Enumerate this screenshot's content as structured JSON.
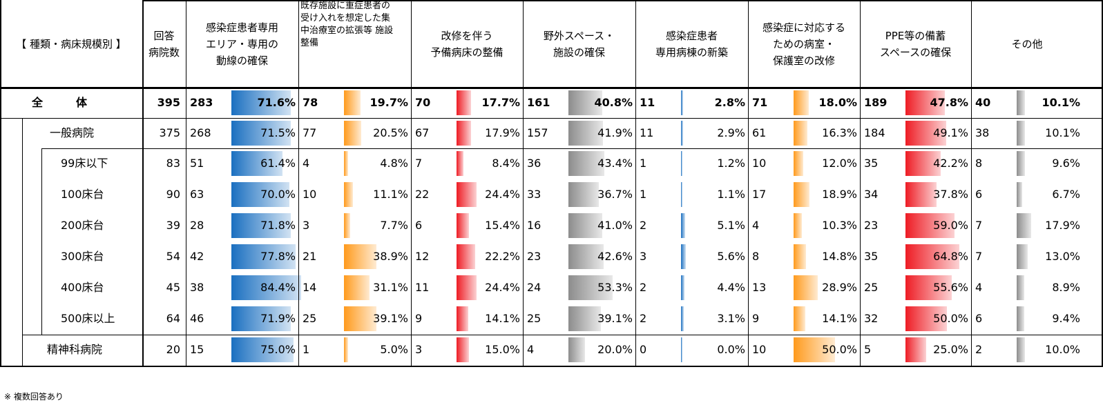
{
  "header": {
    "title": "【 種類・病床規模別 】",
    "count_label_lines": [
      "回答",
      "病院数"
    ],
    "columns": [
      {
        "lines": [
          "感染症患者専用",
          "エリア・専用の",
          "動線の確保"
        ],
        "color": "blue"
      },
      {
        "lines": [
          "既存施設に重症患者の",
          "受け入れを想定した集",
          "中治療室の拡張等 施設",
          "整備"
        ],
        "color": "orange",
        "small": true
      },
      {
        "lines": [
          "改修を伴う",
          "予備病床の整備"
        ],
        "color": "red"
      },
      {
        "lines": [
          "野外スペース・",
          "施設の確保"
        ],
        "color": "gray"
      },
      {
        "lines": [
          "感染症患者",
          "専用病棟の新築"
        ],
        "color": "blue"
      },
      {
        "lines": [
          "感染症に対応する",
          "ための病室・",
          "保護室の改修"
        ],
        "color": "orange"
      },
      {
        "lines": [
          "PPE等の備蓄",
          "スペースの確保"
        ],
        "color": "red"
      },
      {
        "lines": [
          "その他"
        ],
        "color": "gray"
      }
    ]
  },
  "colors": {
    "blue": "#1a6fc0",
    "orange": "#ff9a1c",
    "red": "#ee1c24",
    "gray": "#8c8c8c"
  },
  "rows": [
    {
      "label": "全　　　体",
      "count": "395",
      "bold": true,
      "cells": [
        [
          "283",
          "71.6%",
          0.716
        ],
        [
          "78",
          "19.7%",
          0.197
        ],
        [
          "70",
          "17.7%",
          0.177
        ],
        [
          "161",
          "40.8%",
          0.408
        ],
        [
          "11",
          "2.8%",
          0.028
        ],
        [
          "71",
          "18.0%",
          0.18
        ],
        [
          "189",
          "47.8%",
          0.478
        ],
        [
          "40",
          "10.1%",
          0.101
        ]
      ]
    },
    {
      "label": "一般病院",
      "count": "375",
      "cells": [
        [
          "268",
          "71.5%",
          0.715
        ],
        [
          "77",
          "20.5%",
          0.205
        ],
        [
          "67",
          "17.9%",
          0.179
        ],
        [
          "157",
          "41.9%",
          0.419
        ],
        [
          "11",
          "2.9%",
          0.029
        ],
        [
          "61",
          "16.3%",
          0.163
        ],
        [
          "184",
          "49.1%",
          0.491
        ],
        [
          "38",
          "10.1%",
          0.101
        ]
      ]
    },
    {
      "label": "99床以下",
      "count": "83",
      "cells": [
        [
          "51",
          "61.4%",
          0.614
        ],
        [
          "4",
          "4.8%",
          0.048
        ],
        [
          "7",
          "8.4%",
          0.084
        ],
        [
          "36",
          "43.4%",
          0.434
        ],
        [
          "1",
          "1.2%",
          0.012
        ],
        [
          "10",
          "12.0%",
          0.12
        ],
        [
          "35",
          "42.2%",
          0.422
        ],
        [
          "8",
          "9.6%",
          0.096
        ]
      ]
    },
    {
      "label": "100床台",
      "count": "90",
      "cells": [
        [
          "63",
          "70.0%",
          0.7
        ],
        [
          "10",
          "11.1%",
          0.111
        ],
        [
          "22",
          "24.4%",
          0.244
        ],
        [
          "33",
          "36.7%",
          0.367
        ],
        [
          "1",
          "1.1%",
          0.011
        ],
        [
          "17",
          "18.9%",
          0.189
        ],
        [
          "34",
          "37.8%",
          0.378
        ],
        [
          "6",
          "6.7%",
          0.067
        ]
      ]
    },
    {
      "label": "200床台",
      "count": "39",
      "cells": [
        [
          "28",
          "71.8%",
          0.718
        ],
        [
          "3",
          "7.7%",
          0.077
        ],
        [
          "6",
          "15.4%",
          0.154
        ],
        [
          "16",
          "41.0%",
          0.41
        ],
        [
          "2",
          "5.1%",
          0.051
        ],
        [
          "4",
          "10.3%",
          0.103
        ],
        [
          "23",
          "59.0%",
          0.59
        ],
        [
          "7",
          "17.9%",
          0.179
        ]
      ]
    },
    {
      "label": "300床台",
      "count": "54",
      "cells": [
        [
          "42",
          "77.8%",
          0.778
        ],
        [
          "21",
          "38.9%",
          0.389
        ],
        [
          "12",
          "22.2%",
          0.222
        ],
        [
          "23",
          "42.6%",
          0.426
        ],
        [
          "3",
          "5.6%",
          0.056
        ],
        [
          "8",
          "14.8%",
          0.148
        ],
        [
          "35",
          "64.8%",
          0.648
        ],
        [
          "7",
          "13.0%",
          0.13
        ]
      ]
    },
    {
      "label": "400床台",
      "count": "45",
      "cells": [
        [
          "38",
          "84.4%",
          0.844
        ],
        [
          "14",
          "31.1%",
          0.311
        ],
        [
          "11",
          "24.4%",
          0.244
        ],
        [
          "24",
          "53.3%",
          0.533
        ],
        [
          "2",
          "4.4%",
          0.044
        ],
        [
          "13",
          "28.9%",
          0.289
        ],
        [
          "25",
          "55.6%",
          0.556
        ],
        [
          "4",
          "8.9%",
          0.089
        ]
      ]
    },
    {
      "label": "500床以上",
      "count": "64",
      "cells": [
        [
          "46",
          "71.9%",
          0.719
        ],
        [
          "25",
          "39.1%",
          0.391
        ],
        [
          "9",
          "14.1%",
          0.141
        ],
        [
          "25",
          "39.1%",
          0.391
        ],
        [
          "2",
          "3.1%",
          0.031
        ],
        [
          "9",
          "14.1%",
          0.141
        ],
        [
          "32",
          "50.0%",
          0.5
        ],
        [
          "6",
          "9.4%",
          0.094
        ]
      ]
    },
    {
      "label": "精神科病院",
      "count": "20",
      "cells": [
        [
          "15",
          "75.0%",
          0.75
        ],
        [
          "1",
          "5.0%",
          0.05
        ],
        [
          "3",
          "15.0%",
          0.15
        ],
        [
          "4",
          "20.0%",
          0.2
        ],
        [
          "0",
          "0.0%",
          0.0
        ],
        [
          "10",
          "50.0%",
          0.5
        ],
        [
          "5",
          "25.0%",
          0.25
        ],
        [
          "2",
          "10.0%",
          0.1
        ]
      ]
    }
  ],
  "footnote": "※ 複数回答あり"
}
